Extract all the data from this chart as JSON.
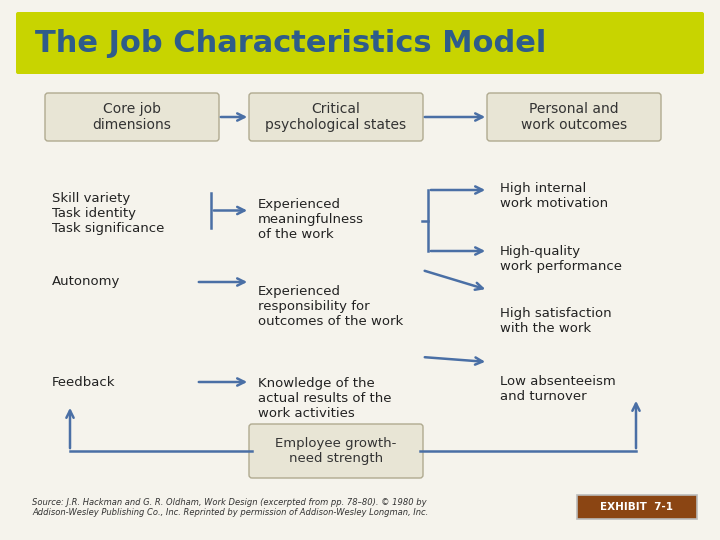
{
  "title": "The Job Characteristics Model",
  "title_bg": "#c8d400",
  "title_color": "#2e5c8a",
  "title_fontsize": 22,
  "main_bg": "#f5f3ec",
  "box_bg": "#e8e5d5",
  "box_border": "#b0aa90",
  "arrow_color": "#4a6fa5",
  "exhibit_bg": "#8b4513",
  "exhibit_color": "#ffffff",
  "exhibit_text": "EXHIBIT  7-1",
  "source_text": "Source: J.R. Hackman and G. R. Oldham, Work Design (excerpted from pp. 78–80). © 1980 by\nAddison-Wesley Publishing Co., Inc. Reprinted by permission of Addison-Wesley Longman, Inc.",
  "col1_header": "Core job\ndimensions",
  "col2_header": "Critical\npsychological states",
  "col3_header": "Personal and\nwork outcomes",
  "col1_items": [
    "Skill variety\nTask identity\nTask significance",
    "Autonomy",
    "Feedback"
  ],
  "col2_items": [
    "Experienced\nmeaningfulness\nof the work",
    "Experienced\nresponsibility for\noutcomes of the work",
    "Knowledge of the\nactual results of the\nwork activities"
  ],
  "col3_items": [
    "High internal\nwork motivation",
    "High-quality\nwork performance",
    "High satisfaction\nwith the work",
    "Low absenteeism\nand turnover"
  ],
  "bottom_box": "Employee growth-\nneed strength"
}
